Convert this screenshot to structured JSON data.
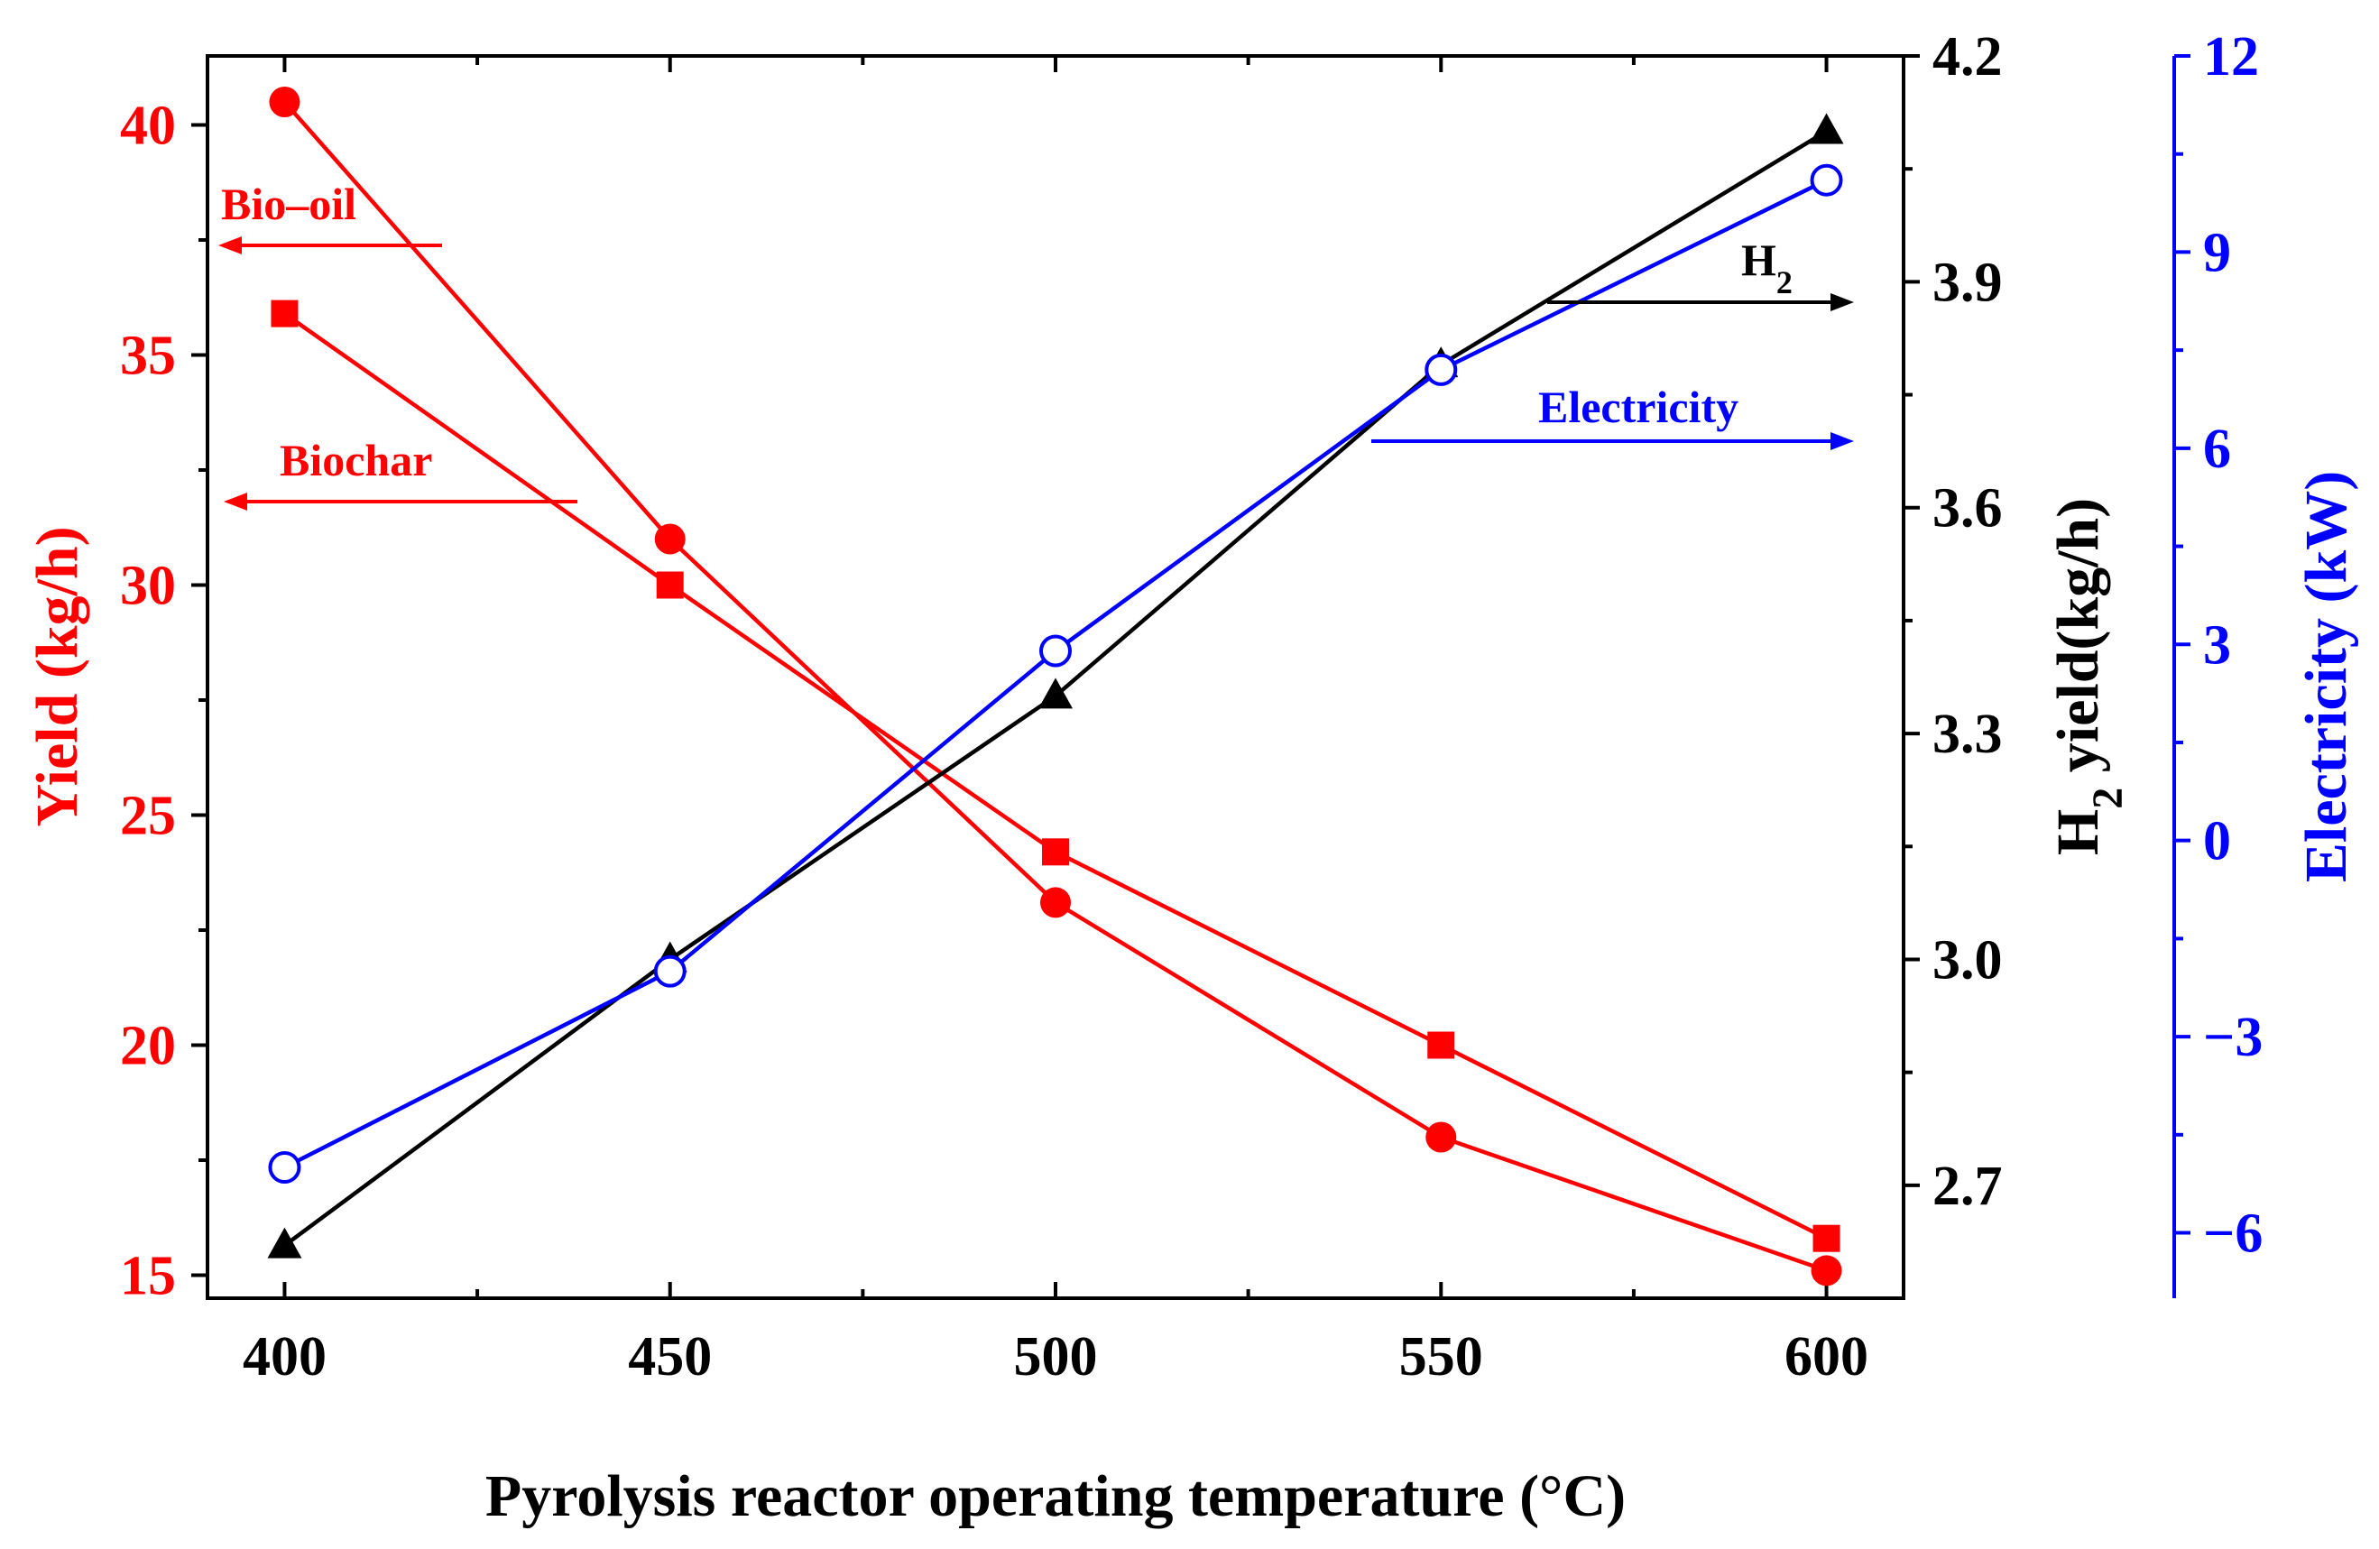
{
  "chart_data": {
    "type": "line",
    "x": [
      400,
      450,
      500,
      550,
      600
    ],
    "xlim": [
      390,
      610
    ],
    "xticks": [
      400,
      450,
      500,
      550,
      600
    ],
    "xminor": [
      425,
      475,
      525,
      575
    ],
    "xlabel": "Pyrolysis reactor operating temperature (°C)",
    "axes": {
      "left": {
        "label": "Yield (kg/h)",
        "ylim": [
          14.5,
          41.5
        ],
        "ticks": [
          15,
          20,
          25,
          30,
          35,
          40
        ],
        "minor": [
          17.5,
          22.5,
          27.5,
          32.5,
          37.5
        ],
        "color": "#ff0000"
      },
      "right1": {
        "label_main": "H",
        "label_sub": "2",
        "label_rest": " yield(kg/h)",
        "ylim": [
          2.55,
          4.2
        ],
        "ticks": [
          2.7,
          3.0,
          3.3,
          3.6,
          3.9,
          4.2
        ],
        "tick_labels": [
          "2.7",
          "3.0",
          "3.3",
          "3.6",
          "3.9",
          "4.2"
        ],
        "minor": [
          2.85,
          3.15,
          3.45,
          3.75,
          4.05
        ],
        "color": "#000000"
      },
      "right2": {
        "label": "Electricity (kW)",
        "ylim": [
          -7,
          12
        ],
        "ticks": [
          -6,
          -3,
          0,
          3,
          6,
          9,
          12
        ],
        "minor": [
          -4.5,
          -1.5,
          1.5,
          4.5,
          7.5,
          10.5
        ],
        "color": "#0000ff"
      }
    },
    "series": [
      {
        "name": "Bio–oil",
        "axis": "left",
        "marker": "circle",
        "color": "#ff0000",
        "values": [
          40.5,
          31.0,
          23.1,
          18.0,
          15.1
        ]
      },
      {
        "name": "Biochar",
        "axis": "left",
        "marker": "square",
        "color": "#ff0000",
        "values": [
          35.9,
          30.0,
          24.2,
          20.0,
          15.8
        ]
      },
      {
        "name": "H2",
        "axis": "right1",
        "marker": "triangle",
        "color": "#000000",
        "values": [
          2.62,
          3.0,
          3.35,
          3.79,
          4.1
        ]
      },
      {
        "name": "Electricity",
        "axis": "right2",
        "marker": "open-circle",
        "color": "#0000ff",
        "values": [
          -5.0,
          -2.0,
          2.9,
          7.2,
          10.1
        ]
      }
    ],
    "annotations": {
      "biooil": "Bio–oil",
      "biochar": "Biochar",
      "h2_main": "H",
      "h2_sub": "2",
      "electricity": "Electricity"
    }
  }
}
